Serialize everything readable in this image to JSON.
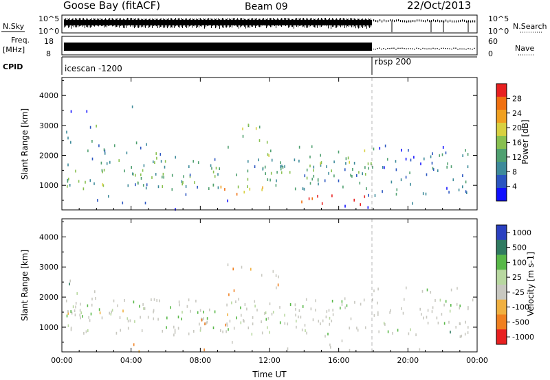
{
  "header": {
    "station": "Goose Bay (fitACF)",
    "beam": "Beam 09",
    "date": "22/Oct/2013"
  },
  "strips": {
    "nsky_label": "N.Sky",
    "nsky_ticks": [
      "10^5",
      "10^0"
    ],
    "nsearch_label": "N.Search",
    "nsearch_ticks": [
      "10^5",
      "10^0"
    ],
    "freq_label": "Freq.",
    "freq_unit": "[MHz]",
    "freq_ticks": [
      "18",
      "8"
    ],
    "nave_label": "Nave",
    "nave_ticks": [
      "60",
      "0"
    ],
    "cpid_label": "CPID",
    "cpid_modes": [
      {
        "name": "icescan -1200",
        "start_hour": 0
      },
      {
        "name": "rbsp 200",
        "start_hour": 18
      }
    ]
  },
  "chart_data": [
    {
      "type": "heatmap",
      "name": "Power",
      "ylabel": "Slant Range [km]",
      "xlabel": "",
      "ylim": [
        180,
        4600
      ],
      "yticks": [
        1000,
        2000,
        3000,
        4000
      ],
      "xlim": [
        0,
        24
      ],
      "xticks": [
        0,
        4,
        8,
        12,
        16,
        20,
        24
      ],
      "colorbar": {
        "label": "Power [dB]",
        "ticks": [
          "28",
          "24",
          "20",
          "16",
          "12",
          "8",
          "4"
        ],
        "values": [
          28,
          24,
          20,
          16,
          12,
          8,
          4
        ],
        "range": [
          0,
          32
        ],
        "colors": [
          "#1010ff",
          "#2a55c0",
          "#3d8a9a",
          "#4fa070",
          "#88c050",
          "#d8d040",
          "#f0a020",
          "#f07010",
          "#e82020"
        ]
      },
      "bands": [
        {
          "t0": 0.2,
          "t1": 18.0,
          "r0": 900,
          "r1": 2000,
          "density": 0.85,
          "mean": 12
        },
        {
          "t0": 0.3,
          "t1": 6.0,
          "r0": 2000,
          "r1": 2500,
          "density": 0.5,
          "mean": 10
        },
        {
          "t0": 0.2,
          "t1": 2.0,
          "r0": 2500,
          "r1": 3400,
          "density": 0.35,
          "mean": 10
        },
        {
          "t0": 9.5,
          "t1": 12.5,
          "r0": 1900,
          "r1": 3200,
          "density": 0.35,
          "mean": 16
        },
        {
          "t0": 12.5,
          "t1": 18.0,
          "r0": 1800,
          "r1": 2400,
          "density": 0.3,
          "mean": 14
        },
        {
          "t0": 13.8,
          "t1": 17.5,
          "r0": 400,
          "r1": 700,
          "density": 0.9,
          "mean": 28
        },
        {
          "t0": 8.0,
          "t1": 12.0,
          "r0": 700,
          "r1": 1000,
          "density": 0.6,
          "mean": 22
        },
        {
          "t0": 18.0,
          "t1": 23.8,
          "r0": 700,
          "r1": 2500,
          "density": 0.55,
          "mean": 8
        },
        {
          "t0": 0.5,
          "t1": 8.0,
          "r0": 3500,
          "r1": 4300,
          "density": 0.06,
          "mean": 6
        },
        {
          "t0": 0.0,
          "t1": 24.0,
          "r0": 200,
          "r1": 800,
          "density": 0.08,
          "mean": 5
        }
      ]
    },
    {
      "type": "heatmap",
      "name": "Velocity",
      "ylabel": "Slant Range [km]",
      "xlabel": "Time UT",
      "ylim": [
        180,
        4600
      ],
      "yticks": [
        1000,
        2000,
        3000,
        4000
      ],
      "xlim": [
        0,
        24
      ],
      "xticks": [
        0,
        4,
        8,
        12,
        16,
        20,
        24
      ],
      "xtick_labels": [
        "00:00",
        "04:00",
        "08:00",
        "12:00",
        "16:00",
        "20:00",
        "00:00"
      ],
      "colorbar": {
        "label": "Velocity [m s-1]",
        "ticks": [
          "1000",
          "500",
          "100",
          "25",
          "-25",
          "-100",
          "-500",
          "-1000"
        ],
        "values": [
          1000,
          500,
          100,
          25,
          -25,
          -100,
          -500,
          -1000
        ],
        "colors": [
          "#2a40c0",
          "#2f7a60",
          "#58b848",
          "#b8d8a0",
          "#c8c8c0",
          "#f0b040",
          "#f08020",
          "#e82020"
        ]
      },
      "bands": [
        {
          "t0": 0.2,
          "t1": 18.0,
          "r0": 800,
          "r1": 2000,
          "density": 0.85,
          "mean": 3
        },
        {
          "t0": 0.3,
          "t1": 6.0,
          "r0": 1200,
          "r1": 1600,
          "density": 0.6,
          "mean": 5
        },
        {
          "t0": 8.0,
          "t1": 12.0,
          "r0": 1100,
          "r1": 1500,
          "density": 0.7,
          "mean": 5
        },
        {
          "t0": 9.5,
          "t1": 12.5,
          "r0": 1900,
          "r1": 3200,
          "density": 0.35,
          "mean": 5
        },
        {
          "t0": 0.2,
          "t1": 2.0,
          "r0": 1500,
          "r1": 3000,
          "density": 0.35,
          "mean": 2
        },
        {
          "t0": 18.0,
          "t1": 23.8,
          "r0": 700,
          "r1": 2400,
          "density": 0.55,
          "mean": 3
        },
        {
          "t0": 21.0,
          "t1": 23.8,
          "r0": 800,
          "r1": 1600,
          "density": 0.5,
          "mean": 2
        },
        {
          "t0": 0.0,
          "t1": 24.0,
          "r0": 200,
          "r1": 800,
          "density": 0.1,
          "mean": 5
        }
      ]
    }
  ]
}
